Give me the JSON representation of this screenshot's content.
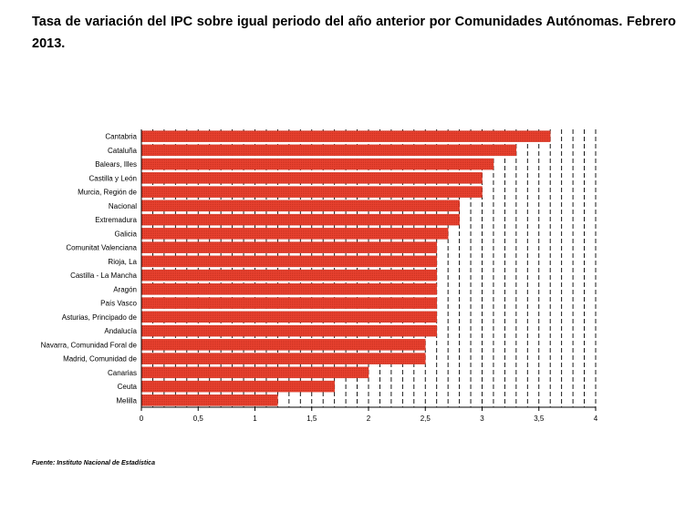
{
  "title": "Tasa de variación del IPC sobre igual periodo del año anterior por Comunidades Autónomas. Febrero 2013.",
  "source": "Fuente: Instituto Nacional de Estadística",
  "chart_data": {
    "type": "bar",
    "orientation": "horizontal",
    "categories": [
      "Cantabria",
      "Cataluña",
      "Balears, Illes",
      "Castilla y León",
      "Murcia, Región de",
      "Nacional",
      "Extremadura",
      "Galicia",
      "Comunitat Valenciana",
      "Rioja, La",
      "Castilla - La Mancha",
      "Aragón",
      "País Vasco",
      "Asturias, Principado de",
      "Andalucía",
      "Navarra, Comunidad Foral de",
      "Madrid, Comunidad de",
      "Canarias",
      "Ceuta",
      "Melilla"
    ],
    "values": [
      3.6,
      3.3,
      3.1,
      3.0,
      3.0,
      2.8,
      2.8,
      2.7,
      2.6,
      2.6,
      2.6,
      2.6,
      2.6,
      2.6,
      2.6,
      2.5,
      2.5,
      2.0,
      1.7,
      1.2
    ],
    "xlim": [
      0,
      4
    ],
    "xticks": [
      0,
      0.5,
      1,
      1.5,
      2,
      2.5,
      3,
      3.5,
      4
    ],
    "xtick_labels": [
      "0",
      "0,5",
      "1",
      "1,5",
      "2",
      "2,5",
      "3",
      "3,5",
      "4"
    ],
    "xlabel": "",
    "ylabel": "",
    "grid": "vertical dashed",
    "bar_color": "#e8412f"
  }
}
